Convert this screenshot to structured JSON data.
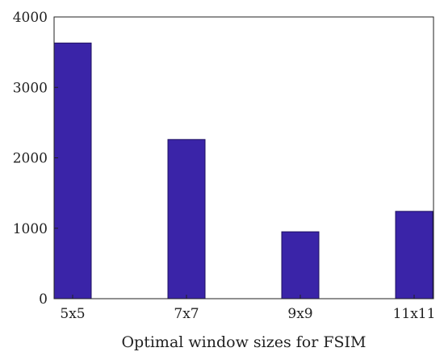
{
  "chart_data": {
    "type": "bar",
    "title": "",
    "xlabel": "Optimal window sizes for FSIM",
    "ylabel": "",
    "categories": [
      "5x5",
      "7x7",
      "9x9",
      "11x11"
    ],
    "values": [
      3630,
      2260,
      950,
      1240
    ],
    "ylim": [
      0,
      4000
    ],
    "yticks": [
      0,
      1000,
      2000,
      3000,
      4000
    ],
    "grid": false,
    "bar_color": "#3a24a8"
  }
}
